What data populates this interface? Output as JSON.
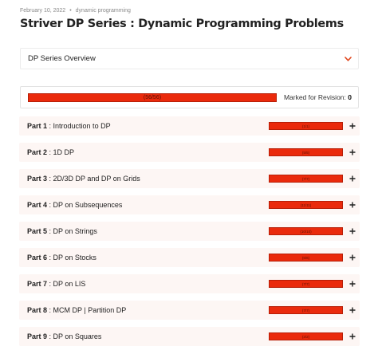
{
  "meta": {
    "date": "February 10, 2022",
    "separator": "•",
    "category": "dynamic programming"
  },
  "title": "Striver DP Series : Dynamic Programming Problems",
  "overview": {
    "label": "DP Series Overview",
    "icon": "chevron-down-icon"
  },
  "progress": {
    "text": "(56/56)",
    "fraction": 1.0,
    "revision_label": "Marked for Revision:",
    "revision_count": "0"
  },
  "colors": {
    "accent": "#ea2a0c",
    "row_bg": "#fdf6f4"
  },
  "parts": [
    {
      "num": "Part 1",
      "sep": " : ",
      "title": "Introduction to DP",
      "count": "(1/1)",
      "fraction": 1.0
    },
    {
      "num": "Part 2",
      "sep": " : ",
      "title": "1D DP",
      "count": "(5/5)",
      "fraction": 1.0
    },
    {
      "num": "Part 3",
      "sep": " : ",
      "title": "2D/3D DP and DP on Grids",
      "count": "(7/7)",
      "fraction": 1.0
    },
    {
      "num": "Part 4",
      "sep": " : ",
      "title": "DP on Subsequences",
      "count": "(11/11)",
      "fraction": 1.0
    },
    {
      "num": "Part 5",
      "sep": " : ",
      "title": "DP on Strings",
      "count": "(10/10)",
      "fraction": 1.0
    },
    {
      "num": "Part 6",
      "sep": " : ",
      "title": "DP on Stocks",
      "count": "(6/6)",
      "fraction": 1.0
    },
    {
      "num": "Part 7",
      "sep": " : ",
      "title": "DP on LIS",
      "count": "(7/7)",
      "fraction": 1.0
    },
    {
      "num": "Part 8",
      "sep": " : ",
      "title": "MCM DP | Partition DP",
      "count": "(7/7)",
      "fraction": 1.0
    },
    {
      "num": "Part 9",
      "sep": " : ",
      "title": "DP on Squares",
      "count": "(2/2)",
      "fraction": 1.0
    }
  ]
}
